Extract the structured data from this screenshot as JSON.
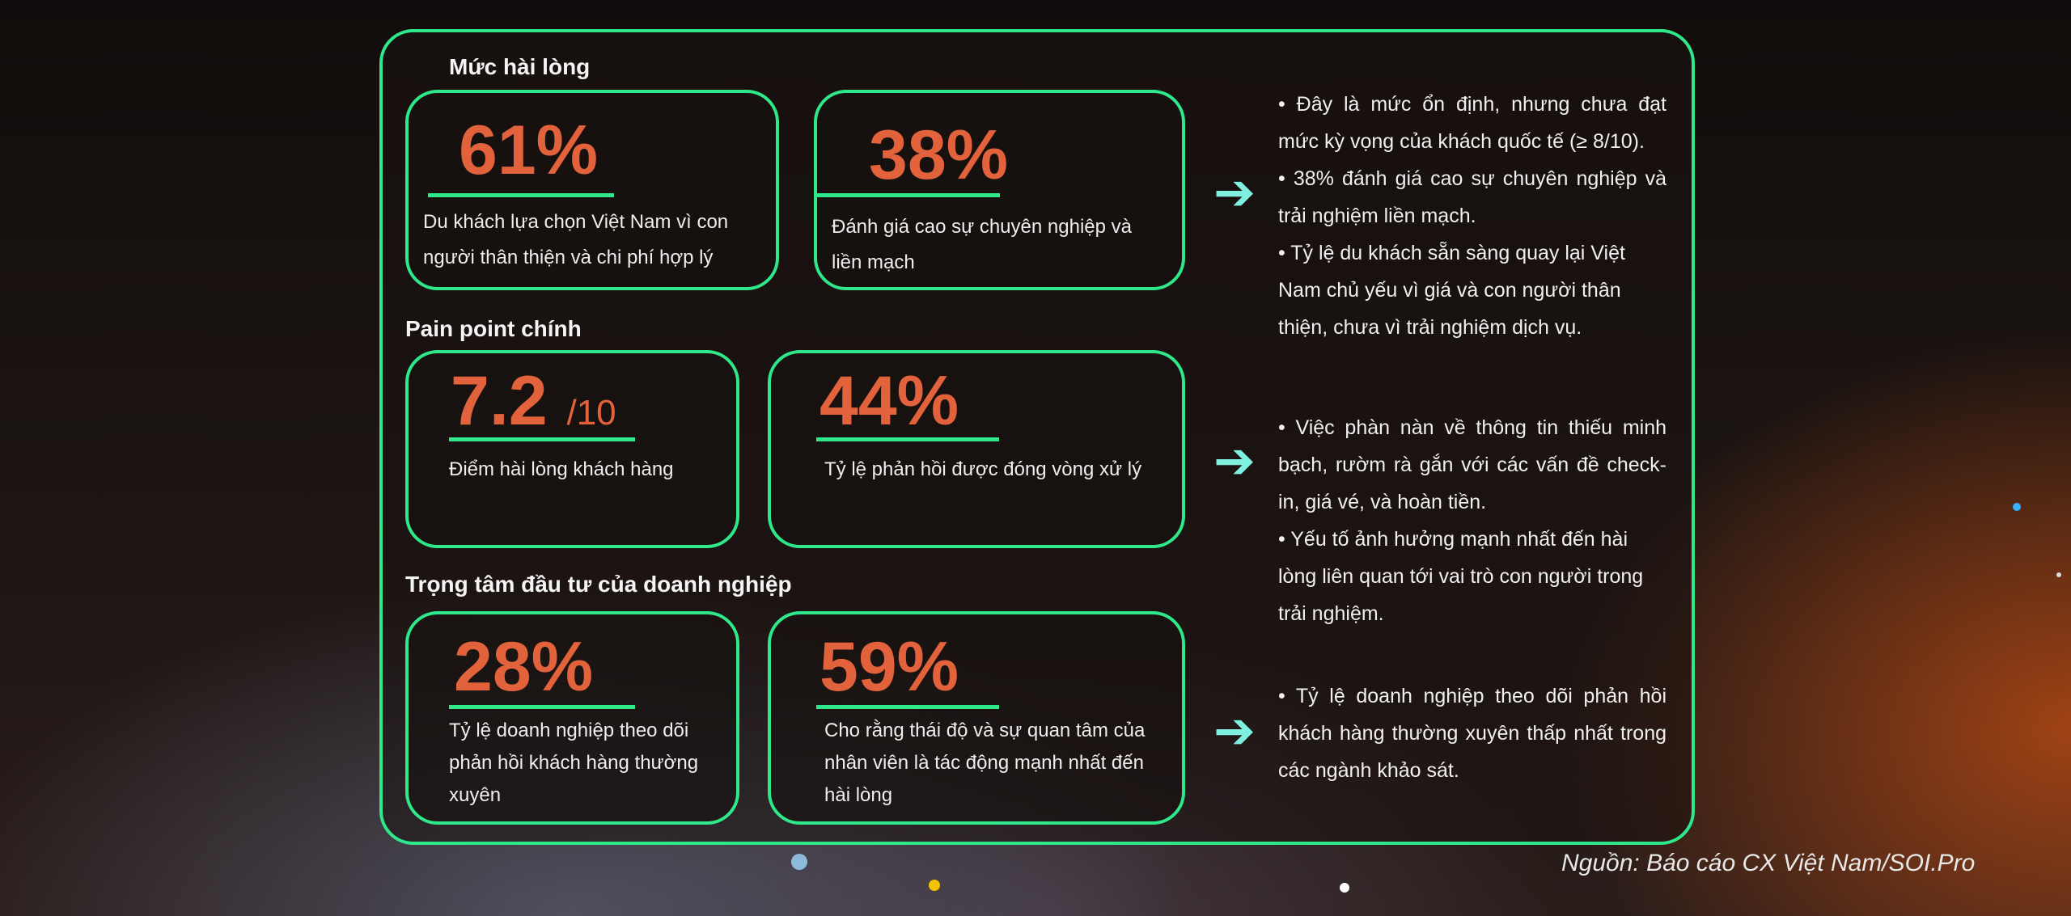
{
  "sections": [
    {
      "title": "Mức hài lòng",
      "cards": [
        {
          "value": "61%",
          "suffix": "",
          "desc": "Du khách lựa chọn Việt Nam vì con người thân thiện và chi phí hợp lý"
        },
        {
          "value": "38%",
          "suffix": "",
          "desc": "Đánh giá cao sự chuyên nghiệp và liền mạch"
        }
      ],
      "notes": [
        "• Đây là mức ổn định, nhưng chưa đạt mức kỳ vọng của khách quốc tế (≥ 8/10).",
        "• 38% đánh giá cao sự chuyên nghiệp và trải nghiệm liền mạch.",
        "• Tỷ lệ du khách sẵn sàng quay lại Việt Nam chủ yếu vì giá và con người thân thiện, chưa vì trải nghiệm dịch vụ."
      ]
    },
    {
      "title": "Pain point chính",
      "cards": [
        {
          "value": "7.2",
          "suffix": "/10",
          "desc": "Điểm hài lòng khách hàng"
        },
        {
          "value": "44%",
          "suffix": "",
          "desc": "Tỷ lệ phản hồi được đóng vòng xử lý"
        }
      ],
      "notes": [
        "• Việc phàn nàn về thông tin thiếu minh bạch, rườm rà gắn với các vấn đề check-in, giá vé, và hoàn tiền.",
        "• Yếu tố ảnh hưởng mạnh nhất đến hài lòng liên quan tới vai trò con người trong trải nghiệm."
      ]
    },
    {
      "title": "Trọng tâm đầu tư của doanh nghiệp",
      "cards": [
        {
          "value": "28%",
          "suffix": "",
          "desc": "Tỷ lệ doanh nghiệp theo dõi phản hồi khách hàng thường xuyên"
        },
        {
          "value": "59%",
          "suffix": "",
          "desc": "Cho rằng thái độ và sự quan tâm của nhân viên là tác động mạnh nhất đến hài lòng"
        }
      ],
      "notes": [
        "• Tỷ lệ doanh nghiệp theo dõi phản hồi khách hàng thường xuyên thấp nhất trong các ngành khảo sát."
      ]
    }
  ],
  "arrow_icon": "arrow-right-icon",
  "source": "Nguồn: Báo cáo CX Việt Nam/SOI.Pro",
  "colors": {
    "accent": "#2ee88a",
    "number": "#e2623b",
    "arrow": "#7ff0e0"
  }
}
